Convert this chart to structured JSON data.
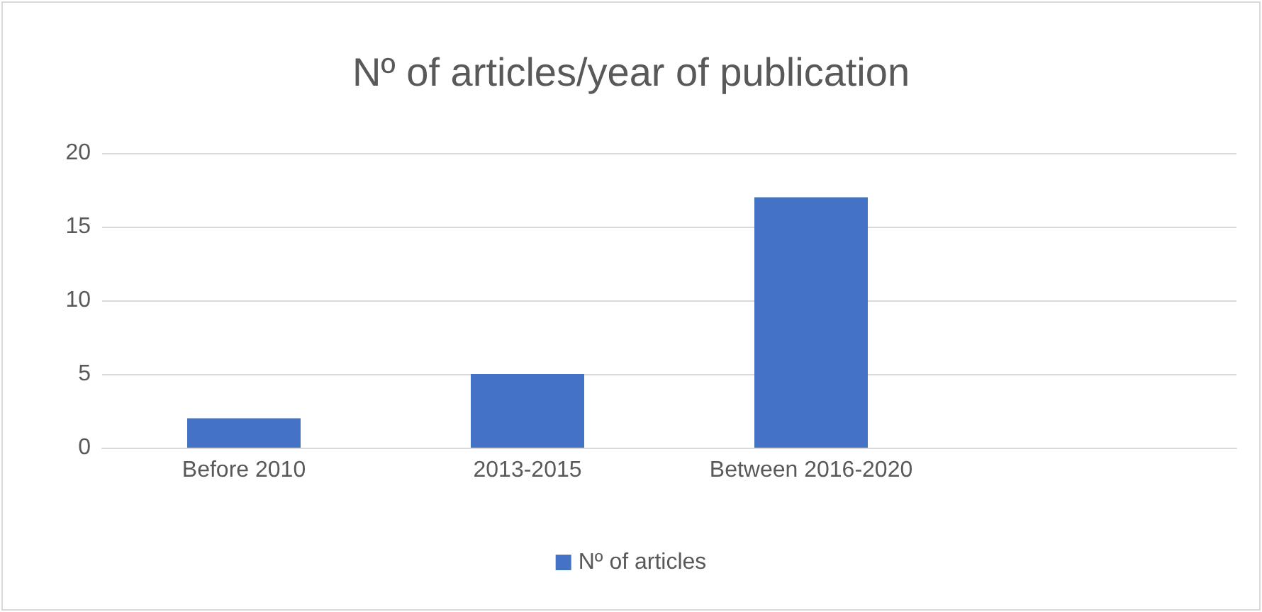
{
  "chart_data": {
    "type": "bar",
    "title": "Nº of articles/year of publication",
    "categories": [
      "Before 2010",
      "2013-2015",
      "Between 2016-2020",
      null
    ],
    "series": [
      {
        "name": "Nº of articles",
        "color": "#4472c4",
        "values": [
          2,
          5,
          17,
          null
        ]
      }
    ],
    "ylim": [
      0,
      20
    ],
    "yticks": [
      0,
      5,
      10,
      15,
      20
    ],
    "grid": "y",
    "legend": "bottom"
  }
}
